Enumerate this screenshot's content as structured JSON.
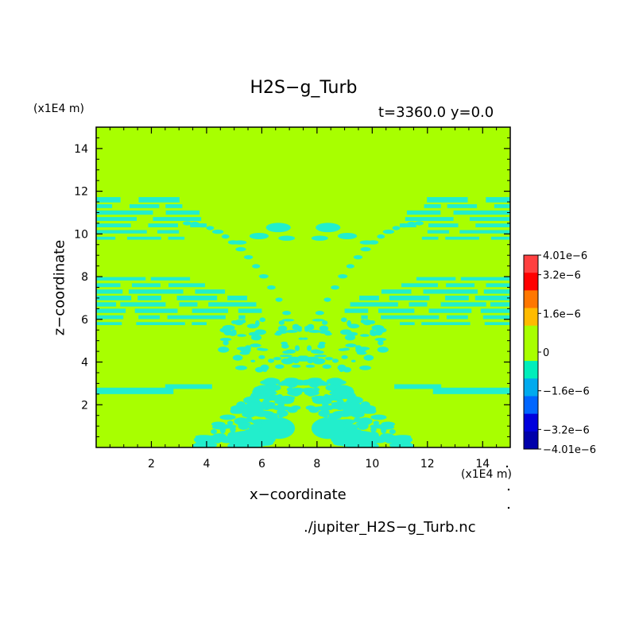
{
  "chart_data": {
    "type": "heatmap",
    "title": "H2S−g_Turb",
    "time_label": "t=3360.0 y=0.0",
    "xlabel": "x−coordinate",
    "ylabel": "z−coordinate",
    "x_unit": "(x1E4 m)",
    "z_unit": "(x1E4 m)",
    "file_label": "./jupiter_H2S−g_Turb.nc",
    "xlim": [
      0,
      15
    ],
    "ylim": [
      0,
      15
    ],
    "x_ticks": [
      2,
      4,
      6,
      8,
      10,
      12,
      14
    ],
    "y_ticks": [
      2,
      4,
      6,
      8,
      10,
      12,
      14
    ],
    "background_value": 0,
    "dominant_negative_value": -8e-07,
    "colorbar": {
      "labels": [
        "4.01e−6",
        "3.2e−6",
        "1.6e−6",
        "0",
        "−1.6e−6",
        "−3.2e−6",
        "−4.01e−6"
      ],
      "label_values": [
        4.01e-06,
        3.2e-06,
        1.6e-06,
        0,
        -1.6e-06,
        -3.2e-06,
        -4.01e-06
      ],
      "levels": [
        -4.01e-06,
        -3.2e-06,
        -2.4e-06,
        -1.6e-06,
        -8e-07,
        0,
        8e-07,
        1.6e-06,
        2.4e-06,
        3.2e-06,
        4.01e-06
      ],
      "colors": [
        "#ff4040",
        "#ff0000",
        "#ff7700",
        "#ffbb00",
        "#a8ff00",
        "#a8ff00",
        "#00eebb",
        "#00aaee",
        "#0066ff",
        "#0000dd",
        "#0000aa"
      ]
    },
    "field_colors": {
      "zero": "#a8ff00",
      "negative": "#22eecc"
    }
  }
}
